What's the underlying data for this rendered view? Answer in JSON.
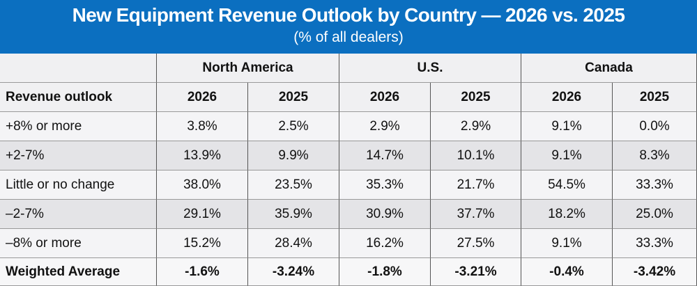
{
  "header": {
    "title": "New Equipment Revenue Outlook by Country — 2026 vs. 2025",
    "subtitle": "(% of all dealers)"
  },
  "table": {
    "groups": [
      "North America",
      "U.S.",
      "Canada"
    ],
    "columns": [
      "Revenue outlook",
      "2026",
      "2025",
      "2026",
      "2025",
      "2026",
      "2025"
    ],
    "rows": [
      [
        "+8% or more",
        "3.8%",
        "2.5%",
        "2.9%",
        "2.9%",
        "9.1%",
        "0.0%"
      ],
      [
        "+2-7%",
        "13.9%",
        "9.9%",
        "14.7%",
        "10.1%",
        "9.1%",
        "8.3%"
      ],
      [
        "Little or no change",
        "38.0%",
        "23.5%",
        "35.3%",
        "21.7%",
        "54.5%",
        "33.3%"
      ],
      [
        "–2-7%",
        "29.1%",
        "35.9%",
        "30.9%",
        "37.7%",
        "18.2%",
        "25.0%"
      ],
      [
        "–8% or more",
        "15.2%",
        "28.4%",
        "16.2%",
        "27.5%",
        "9.1%",
        "33.3%"
      ],
      [
        "Weighted Average",
        "-1.6%",
        "-3.24%",
        "-1.8%",
        "-3.21%",
        "-0.4%",
        "-3.42%"
      ]
    ]
  }
}
